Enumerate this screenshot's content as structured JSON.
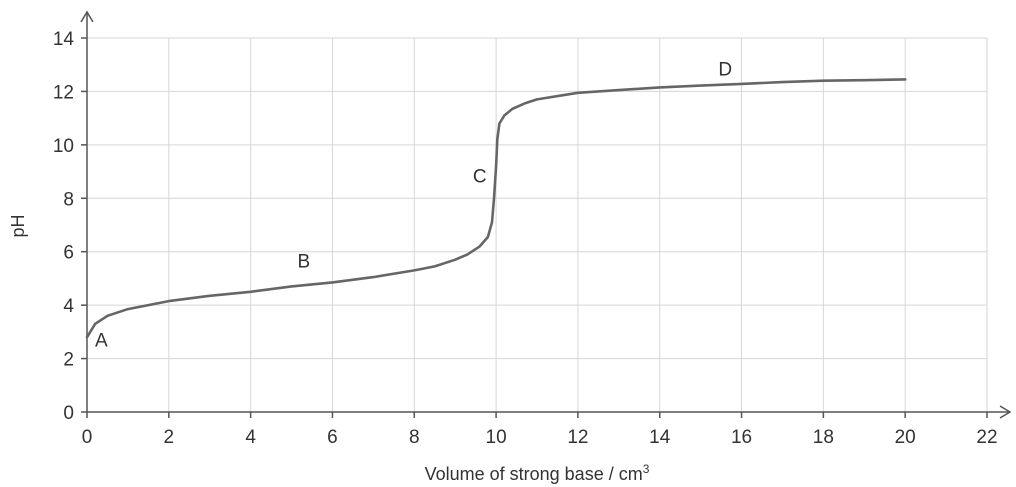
{
  "chart_data": {
    "type": "line",
    "xlabel": "Volume of strong base / cm",
    "xlabel_superscript": "3",
    "ylabel": "pH",
    "xlim": [
      0,
      22
    ],
    "ylim": [
      0,
      14
    ],
    "x_ticks": [
      0,
      2,
      4,
      6,
      8,
      10,
      12,
      14,
      16,
      18,
      20,
      22
    ],
    "y_ticks": [
      0,
      2,
      4,
      6,
      8,
      10,
      12,
      14
    ],
    "grid": true,
    "series": [
      {
        "x": [
          0,
          0.2,
          0.5,
          1,
          2,
          3,
          4,
          5,
          6,
          7,
          8,
          8.5,
          9,
          9.3,
          9.6,
          9.8,
          9.9,
          9.95,
          10,
          10.03,
          10.08,
          10.2,
          10.4,
          10.7,
          11,
          12,
          13,
          14,
          15,
          16,
          17,
          18,
          19,
          20
        ],
        "y": [
          2.8,
          3.3,
          3.6,
          3.85,
          4.15,
          4.35,
          4.5,
          4.7,
          4.85,
          5.05,
          5.3,
          5.45,
          5.7,
          5.9,
          6.2,
          6.55,
          7.1,
          8.0,
          9.2,
          10.2,
          10.8,
          11.1,
          11.35,
          11.55,
          11.7,
          11.95,
          12.05,
          12.15,
          12.22,
          12.28,
          12.35,
          12.4,
          12.42,
          12.45
        ]
      }
    ],
    "annotations": [
      {
        "text": "A",
        "x": 0.35,
        "y": 2.45
      },
      {
        "text": "B",
        "x": 5.3,
        "y": 5.4
      },
      {
        "text": "C",
        "x": 9.6,
        "y": 8.6
      },
      {
        "text": "D",
        "x": 15.6,
        "y": 12.6
      }
    ]
  }
}
